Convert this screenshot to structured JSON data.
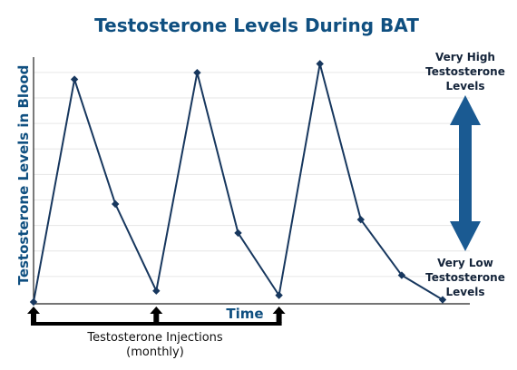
{
  "colors": {
    "title": "#0f4f80",
    "line": "#17375e",
    "arrow": "#1a5a92",
    "grid": "#e6e6e6",
    "injection_arrow": "#000000"
  },
  "chart_data": {
    "type": "line",
    "title": "Testosterone Levels During BAT",
    "xlabel": "Time",
    "ylabel": "Testosterone Levels in Blood",
    "grid": true,
    "x": [
      0,
      1,
      2,
      3,
      4,
      5,
      6,
      7,
      8,
      9,
      10
    ],
    "series": [
      {
        "values": [
          0,
          100,
          44,
          5,
          103,
          31,
          3,
          107,
          37,
          12,
          1
        ]
      }
    ],
    "ylim": [
      0,
      110
    ],
    "injection_points_x": [
      0,
      3,
      6
    ],
    "annotations": {
      "high_label": [
        "Very High",
        "Testosterone",
        "Levels"
      ],
      "low_label": [
        "Very Low",
        "Testosterone",
        "Levels"
      ],
      "injection_label": "Testosterone Injections",
      "injection_sublabel": "(monthly)"
    }
  }
}
